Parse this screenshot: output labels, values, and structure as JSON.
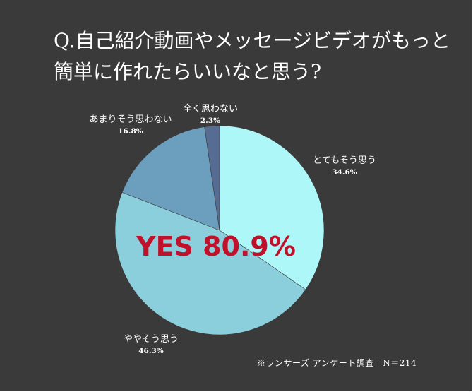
{
  "title": {
    "line1": "Q.自己紹介動画やメッセージビデオがもっと",
    "line2": "簡単に作れたらいいなと思う?"
  },
  "highlight": "YES  80.9%",
  "footnote": "※ランサーズ アンケート調査　N＝214",
  "colors": {
    "background": "#3a3a3a",
    "highlight": "#c0102a",
    "label": "#ffffff"
  },
  "chart_data": {
    "type": "pie",
    "start": "top",
    "direction": "clockwise",
    "slices": [
      {
        "label": "とてもそう思う",
        "value": 34.6,
        "display": "34.6%",
        "color": "#aef7f9"
      },
      {
        "label": "ややそう思う",
        "value": 46.3,
        "display": "46.3%",
        "color": "#8ccfdc"
      },
      {
        "label": "あまりそう思わない",
        "value": 16.8,
        "display": "16.8%",
        "color": "#6b9fbd"
      },
      {
        "label": "全く思わない",
        "value": 2.3,
        "display": "2.3%",
        "color": "#566c92"
      }
    ]
  }
}
